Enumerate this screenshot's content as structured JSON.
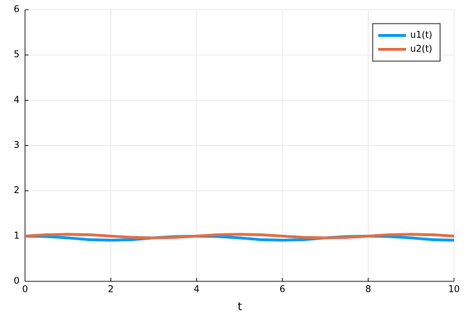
{
  "chart_data": {
    "type": "line",
    "x_label": "t",
    "x": [
      0,
      0.5,
      1,
      1.5,
      2,
      2.5,
      3,
      3.5,
      4,
      4.5,
      5,
      5.5,
      6,
      6.5,
      7,
      7.5,
      8,
      8.5,
      9,
      9.5,
      10
    ],
    "series": [
      {
        "name": "u1(t)",
        "color": "#009afa",
        "values": [
          1.0,
          0.99,
          0.96,
          0.92,
          0.91,
          0.92,
          0.96,
          0.99,
          1.0,
          0.99,
          0.96,
          0.92,
          0.91,
          0.92,
          0.96,
          0.99,
          1.0,
          0.99,
          0.96,
          0.92,
          0.91
        ]
      },
      {
        "name": "u2(t)",
        "color": "#e26f46",
        "values": [
          1.0,
          1.03,
          1.04,
          1.03,
          1.0,
          0.97,
          0.96,
          0.97,
          1.0,
          1.03,
          1.04,
          1.03,
          1.0,
          0.97,
          0.96,
          0.97,
          1.0,
          1.03,
          1.04,
          1.03,
          1.0
        ]
      }
    ],
    "xlim": [
      0,
      10
    ],
    "xticks": [
      0,
      2,
      4,
      6,
      8,
      10
    ],
    "ylim": [
      0,
      6
    ],
    "yticks": [
      0,
      1,
      2,
      3,
      4,
      5,
      6
    ],
    "grid": true,
    "legend": "top-right"
  }
}
